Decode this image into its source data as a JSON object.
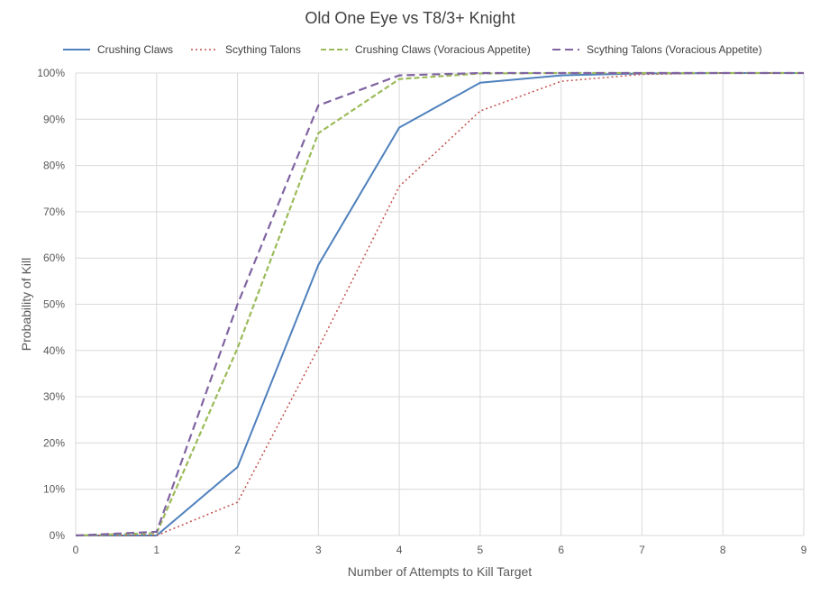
{
  "chart_data": {
    "type": "line",
    "title": "Old One Eye vs T8/3+ Knight",
    "xlabel": "Number of Attempts to Kill Target",
    "ylabel": "Probability of Kill",
    "x": [
      0,
      1,
      2,
      3,
      4,
      5,
      6,
      7,
      8,
      9
    ],
    "xlim": [
      0,
      9
    ],
    "ylim": [
      0,
      100
    ],
    "x_ticks": [
      "0",
      "1",
      "2",
      "3",
      "4",
      "5",
      "6",
      "7",
      "8",
      "9"
    ],
    "y_ticks": [
      "0%",
      "10%",
      "20%",
      "30%",
      "40%",
      "50%",
      "60%",
      "70%",
      "80%",
      "90%",
      "100%"
    ],
    "y_unit": "%",
    "grid": true,
    "legend_position": "top",
    "series": [
      {
        "name": "Crushing Claws",
        "color": "#4f81bd",
        "line_style": "solid",
        "values": [
          0,
          0,
          14.8,
          58.5,
          88.2,
          97.9,
          99.5,
          99.9,
          100,
          100
        ]
      },
      {
        "name": "Scything Talons",
        "color": "#c0504d",
        "line_style": "dotted",
        "values": [
          0,
          0,
          7.2,
          40.5,
          75.5,
          91.8,
          98.2,
          99.7,
          100,
          100
        ]
      },
      {
        "name": "Crushing Claws (Voracious Appetite)",
        "color": "#9bbb59",
        "line_style": "dashed",
        "values": [
          0,
          0.5,
          40.5,
          87.0,
          98.7,
          99.9,
          100,
          100,
          100,
          100
        ]
      },
      {
        "name": "Scything Talons (Voracious Appetite)",
        "color": "#8064a2",
        "line_style": "long-dashed",
        "values": [
          0,
          0.8,
          50.0,
          93.0,
          99.5,
          100,
          100,
          100,
          100,
          100
        ]
      }
    ]
  }
}
